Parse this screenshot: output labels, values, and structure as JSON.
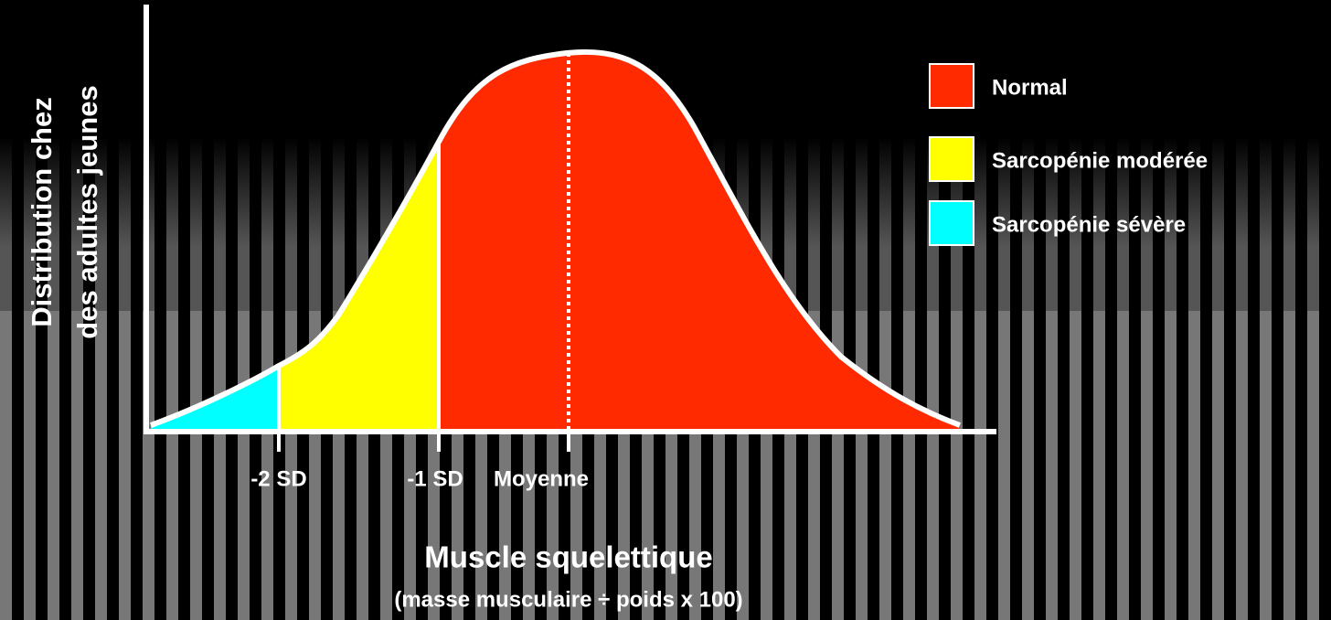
{
  "y_axis_label": [
    "Distribution chez",
    "des adultes jeunes"
  ],
  "ticks": [
    "-2 SD",
    "-1 SD",
    "Moyenne"
  ],
  "x_axis_title": "Muscle squelettique",
  "x_axis_subtitle": "(masse musculaire ÷ poids x 100)",
  "legend": [
    {
      "label": "Normal",
      "color": "#ff2a00"
    },
    {
      "label": "Sarcopénie modérée",
      "color": "#ffff00"
    },
    {
      "label": "Sarcopénie sévère",
      "color": "#00ffff"
    }
  ]
}
